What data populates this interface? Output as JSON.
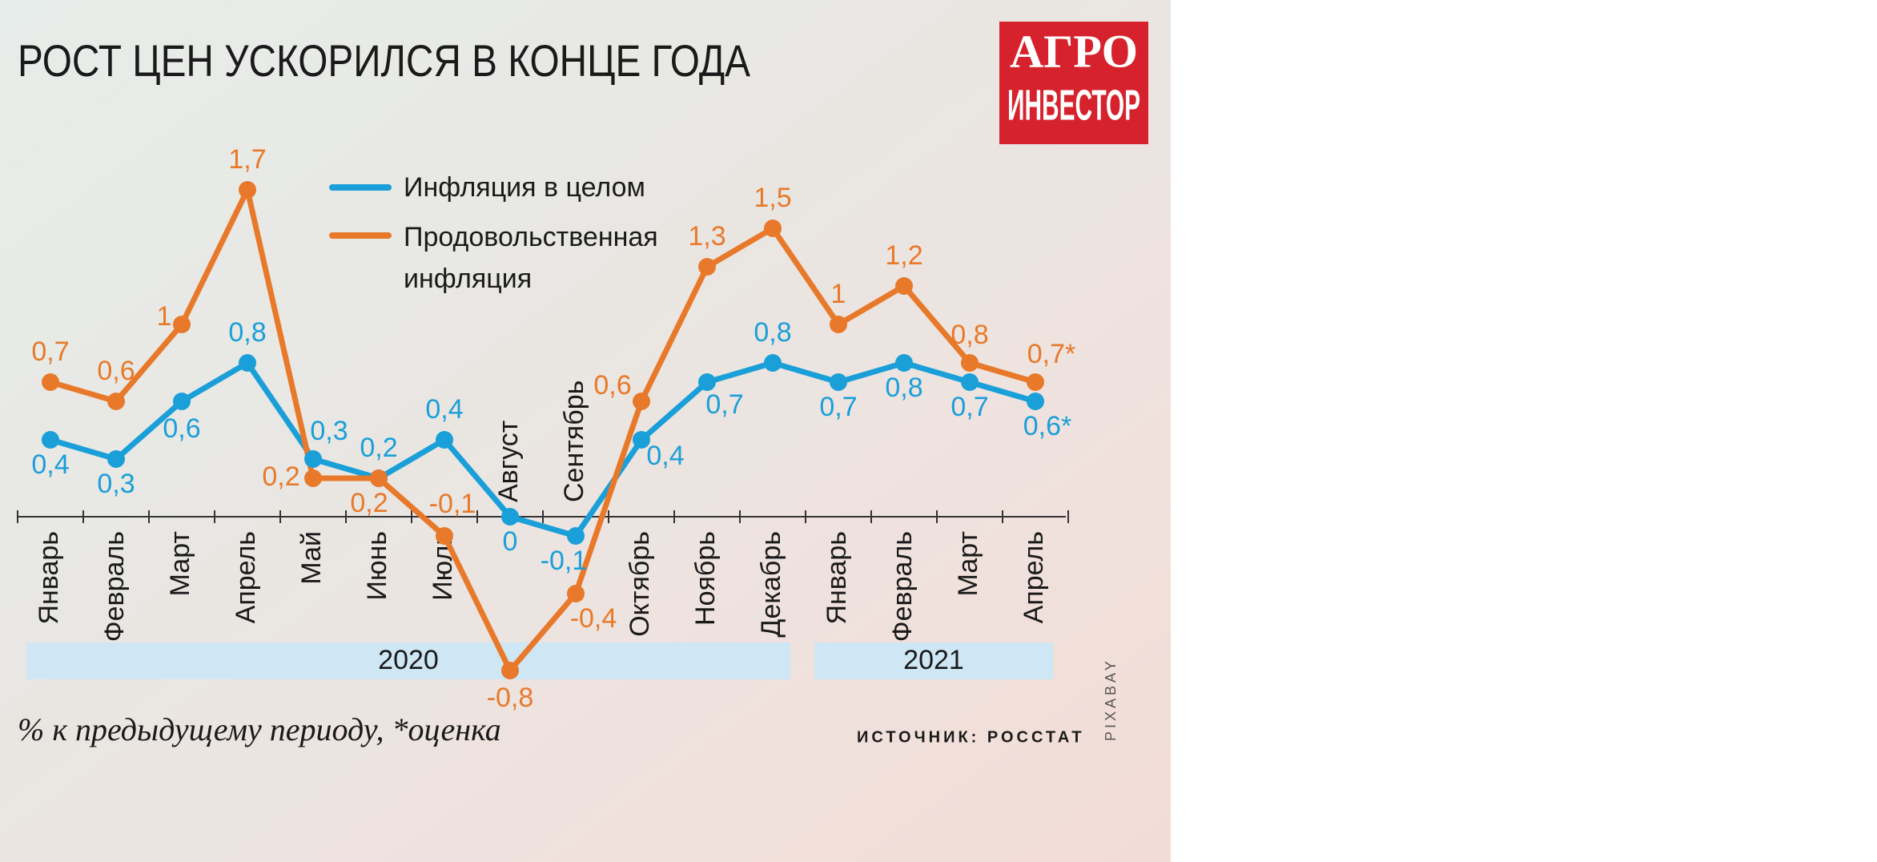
{
  "chart_data": {
    "type": "line",
    "title": "РОСТ ЦЕН УСКОРИЛСЯ В КОНЦЕ ГОДА",
    "categories": [
      "Январь",
      "Февраль",
      "Март",
      "Апрель",
      "Май",
      "Июнь",
      "Июль",
      "Август",
      "Сентябрь",
      "Октябрь",
      "Ноябрь",
      "Декабрь",
      "Январь",
      "Февраль",
      "Март",
      "Апрель"
    ],
    "years": [
      "2020",
      "2021"
    ],
    "series": [
      {
        "name": "Инфляция в целом",
        "color": "#1a9fd9",
        "values": [
          0.4,
          0.3,
          0.6,
          0.8,
          0.3,
          0.2,
          0.4,
          0,
          -0.1,
          0.4,
          0.7,
          0.8,
          0.7,
          0.8,
          0.7,
          0.6
        ],
        "value_labels": [
          "0,4",
          "0,3",
          "0,6",
          "0,8",
          "0,3",
          "0,2",
          "0,4",
          "0",
          "-0,1",
          "0,4",
          "0,7",
          "0,8",
          "0,7",
          "0,8",
          "0,7",
          "0,6*"
        ]
      },
      {
        "name": "Продовольственная инфляция",
        "color": "#e8792a",
        "values": [
          0.7,
          0.6,
          1,
          1.7,
          0.2,
          0.2,
          -0.1,
          -0.8,
          -0.4,
          0.6,
          1.3,
          1.5,
          1,
          1.2,
          0.8,
          0.7
        ],
        "value_labels": [
          "0,7",
          "0,6",
          "1",
          "1,7",
          "0,2",
          "0,2",
          "-0,1",
          "-0,8",
          "-0,4",
          "0,6",
          "1,3",
          "1,5",
          "1",
          "1,2",
          "0,8",
          "0,7*"
        ]
      }
    ],
    "note": "% к предыдущему периоду, *оценка",
    "source": "ИСТОЧНИК: РОССТАТ",
    "logo": [
      "АГРО",
      "ИНВЕСТОР"
    ],
    "photo_credit": "PIXABAY"
  }
}
